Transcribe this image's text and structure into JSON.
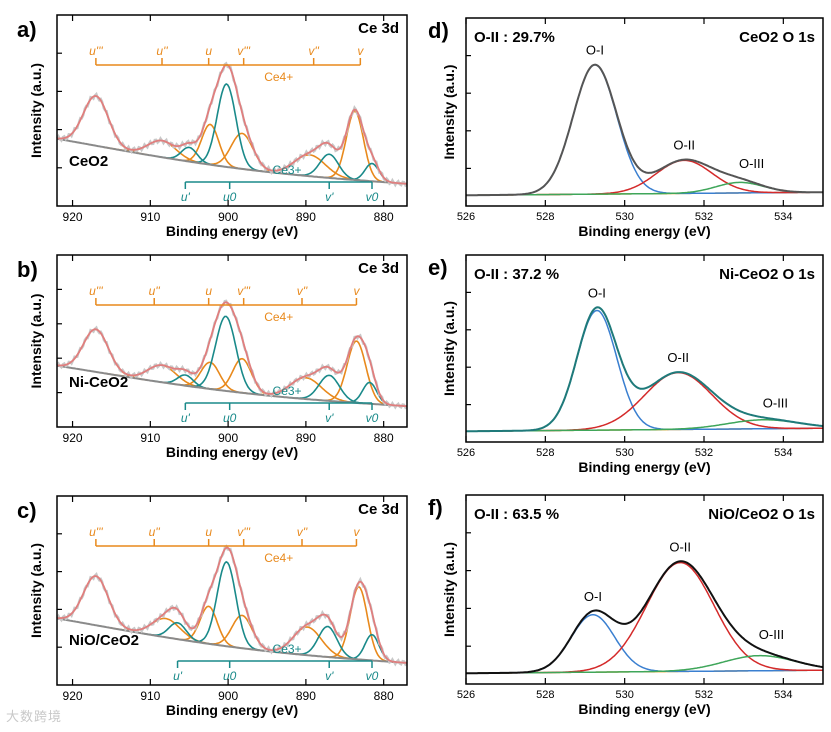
{
  "colors": {
    "axis": "#000000",
    "ce4": "#e8891c",
    "ce3": "#1a8a8a",
    "raw": "#c8c8c8",
    "envelope": "#e07e7e",
    "background": "#8a8a8a",
    "oI": "#3a7fd0",
    "oII": "#d42a2a",
    "oIII": "#3fa65a",
    "oBg": "#e8a020",
    "total_d": "#555555",
    "total_e": "#1f7a7a",
    "total_f": "#111111"
  },
  "ce_tick_labels": [
    "920",
    "910",
    "900",
    "890",
    "880"
  ],
  "o_tick_labels": [
    "526",
    "528",
    "530",
    "532",
    "534"
  ],
  "ce_peak_labels": {
    "ce4": [
      "u'''",
      "u''",
      "u",
      "v'''",
      "v''",
      "v"
    ],
    "ce4_tag": "Ce4+",
    "ce3": [
      "u'",
      "u0",
      "v'",
      "v0"
    ],
    "ce3_tag": "Ce3+"
  },
  "chart_data": [
    {
      "panel": "a)",
      "type": "line",
      "title": "Ce 3d",
      "sample": "CeO2",
      "xlabel": "Binding energy (eV)",
      "ylabel": "Intensity (a.u.)",
      "xlim": [
        922,
        877
      ],
      "xreversed": true,
      "xticks": [
        920,
        910,
        900,
        890,
        880
      ],
      "ce4_positions": [
        917.0,
        908.5,
        902.5,
        898.0,
        889.0,
        883.0
      ],
      "ce3_positions": [
        905.5,
        899.8,
        887.0,
        881.5
      ],
      "components": [
        {
          "family": "ce4",
          "center": 917.0,
          "height": 0.42,
          "width": 1.6
        },
        {
          "family": "ce4",
          "center": 908.5,
          "height": 0.14,
          "width": 1.8
        },
        {
          "family": "ce4",
          "center": 902.3,
          "height": 0.34,
          "width": 1.1
        },
        {
          "family": "ce4",
          "center": 898.2,
          "height": 0.3,
          "width": 1.4
        },
        {
          "family": "ce4",
          "center": 889.5,
          "height": 0.18,
          "width": 2.0
        },
        {
          "family": "ce4",
          "center": 883.7,
          "height": 0.58,
          "width": 1.1
        },
        {
          "family": "ce3",
          "center": 905.0,
          "height": 0.12,
          "width": 1.0
        },
        {
          "family": "ce3",
          "center": 900.2,
          "height": 0.7,
          "width": 1.2
        },
        {
          "family": "ce3",
          "center": 887.0,
          "height": 0.2,
          "width": 1.2
        },
        {
          "family": "ce3",
          "center": 881.5,
          "height": 0.15,
          "width": 0.9
        }
      ]
    },
    {
      "panel": "b)",
      "type": "line",
      "title": "Ce 3d",
      "sample": "Ni-CeO2",
      "xlabel": "Binding energy (eV)",
      "ylabel": "Intensity (a.u.)",
      "xlim": [
        922,
        877
      ],
      "xreversed": true,
      "xticks": [
        920,
        910,
        900,
        890,
        880
      ],
      "ce4_positions": [
        917.0,
        909.5,
        902.5,
        898.0,
        890.5,
        883.5
      ],
      "ce3_positions": [
        905.5,
        899.8,
        887.0,
        881.5
      ],
      "components": [
        {
          "family": "ce4",
          "center": 917.0,
          "height": 0.4,
          "width": 1.6
        },
        {
          "family": "ce4",
          "center": 908.5,
          "height": 0.16,
          "width": 1.8
        },
        {
          "family": "ce4",
          "center": 902.3,
          "height": 0.25,
          "width": 1.2
        },
        {
          "family": "ce4",
          "center": 898.2,
          "height": 0.32,
          "width": 1.2
        },
        {
          "family": "ce4",
          "center": 890.0,
          "height": 0.2,
          "width": 2.0
        },
        {
          "family": "ce4",
          "center": 883.5,
          "height": 0.58,
          "width": 1.2
        },
        {
          "family": "ce3",
          "center": 905.5,
          "height": 0.1,
          "width": 1.0
        },
        {
          "family": "ce3",
          "center": 900.3,
          "height": 0.7,
          "width": 1.3
        },
        {
          "family": "ce3",
          "center": 887.0,
          "height": 0.24,
          "width": 1.3
        },
        {
          "family": "ce3",
          "center": 881.8,
          "height": 0.2,
          "width": 0.9
        }
      ]
    },
    {
      "panel": "c)",
      "type": "line",
      "title": "Ce 3d",
      "sample": "NiO/CeO2",
      "xlabel": "Binding energy (eV)",
      "ylabel": "Intensity (a.u.)",
      "xlim": [
        922,
        877
      ],
      "xreversed": true,
      "xticks": [
        920,
        910,
        900,
        890,
        880
      ],
      "ce4_positions": [
        917.0,
        909.5,
        902.5,
        898.0,
        890.5,
        883.5
      ],
      "ce3_positions": [
        906.5,
        899.8,
        887.0,
        881.5
      ],
      "components": [
        {
          "family": "ce4",
          "center": 917.0,
          "height": 0.42,
          "width": 1.6
        },
        {
          "family": "ce4",
          "center": 908.0,
          "height": 0.16,
          "width": 1.8
        },
        {
          "family": "ce4",
          "center": 902.5,
          "height": 0.32,
          "width": 1.1
        },
        {
          "family": "ce4",
          "center": 898.2,
          "height": 0.28,
          "width": 1.3
        },
        {
          "family": "ce4",
          "center": 889.8,
          "height": 0.24,
          "width": 1.8
        },
        {
          "family": "ce4",
          "center": 883.2,
          "height": 0.62,
          "width": 1.1
        },
        {
          "family": "ce3",
          "center": 906.5,
          "height": 0.14,
          "width": 1.1
        },
        {
          "family": "ce3",
          "center": 900.2,
          "height": 0.72,
          "width": 1.2
        },
        {
          "family": "ce3",
          "center": 887.2,
          "height": 0.26,
          "width": 1.2
        },
        {
          "family": "ce3",
          "center": 881.5,
          "height": 0.22,
          "width": 0.9
        }
      ]
    },
    {
      "panel": "d)",
      "type": "line",
      "title": "O 1s",
      "sample": "CeO2",
      "annotation": "O-II : 29.7%",
      "xlabel": "Binding energy (eV)",
      "ylabel": "Intensity (a.u.)",
      "xlim": [
        526,
        535
      ],
      "xticks": [
        526,
        528,
        530,
        532,
        534
      ],
      "peaks": [
        {
          "name": "O-I",
          "center": 529.25,
          "height": 0.86,
          "width": 0.55
        },
        {
          "name": "O-II",
          "center": 531.5,
          "height": 0.22,
          "width": 0.7
        },
        {
          "name": "O-III",
          "center": 532.9,
          "height": 0.07,
          "width": 0.6
        }
      ],
      "total_color": "total_d"
    },
    {
      "panel": "e)",
      "type": "line",
      "title": "O 1s",
      "sample": "Ni-CeO2",
      "annotation": "O-II : 37.2 %",
      "xlabel": "Binding energy (eV)",
      "ylabel": "Intensity (a.u.)",
      "xlim": [
        526,
        535
      ],
      "xticks": [
        526,
        528,
        530,
        532,
        534
      ],
      "peaks": [
        {
          "name": "O-I",
          "center": 529.3,
          "height": 0.8,
          "width": 0.5
        },
        {
          "name": "O-II",
          "center": 531.35,
          "height": 0.38,
          "width": 0.85
        },
        {
          "name": "O-III",
          "center": 533.5,
          "height": 0.06,
          "width": 0.9
        }
      ],
      "total_color": "total_e"
    },
    {
      "panel": "f)",
      "type": "line",
      "title": "O 1s",
      "sample": "NiO/CeO2",
      "annotation": "O-II : 63.5 %",
      "xlabel": "Binding energy (eV)",
      "ylabel": "Intensity (a.u.)",
      "xlim": [
        526,
        535
      ],
      "xticks": [
        526,
        528,
        530,
        532,
        534
      ],
      "peaks": [
        {
          "name": "O-I",
          "center": 529.2,
          "height": 0.38,
          "width": 0.55
        },
        {
          "name": "O-II",
          "center": 531.4,
          "height": 0.72,
          "width": 0.85
        },
        {
          "name": "O-III",
          "center": 533.4,
          "height": 0.1,
          "width": 0.9
        }
      ],
      "total_color": "total_f"
    }
  ],
  "watermark": "大数跨境"
}
